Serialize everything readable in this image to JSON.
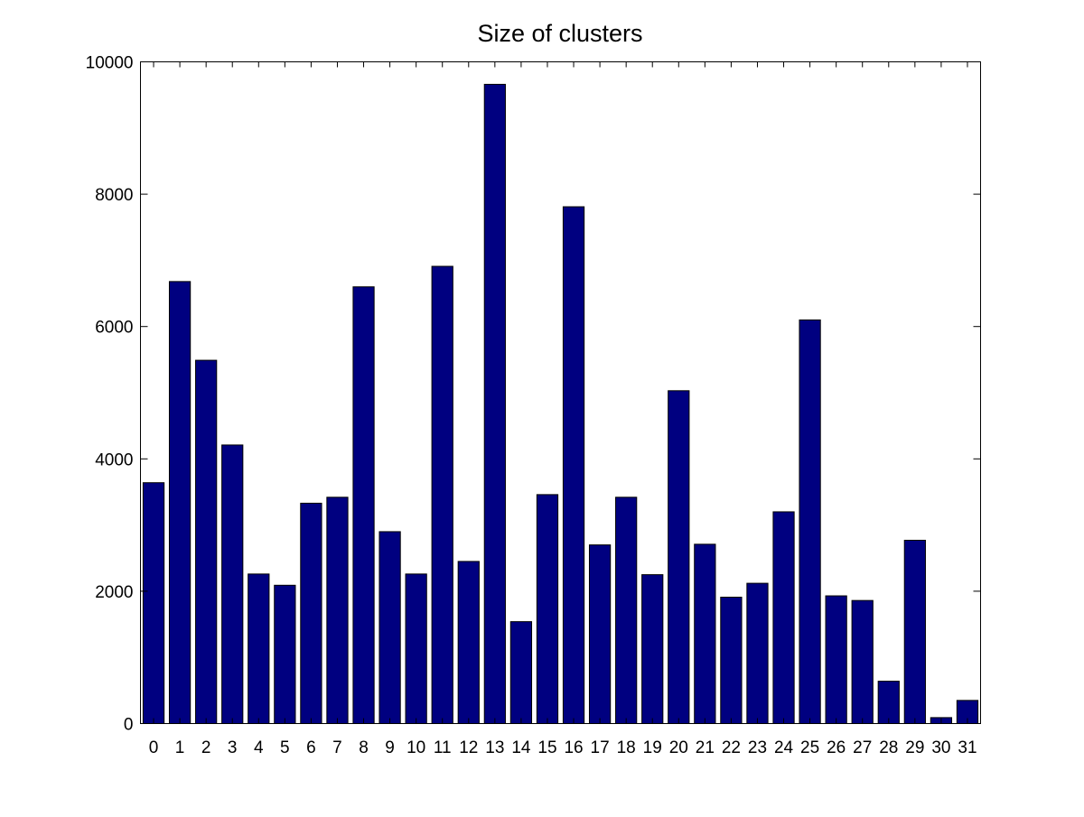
{
  "chart_data": {
    "type": "bar",
    "title": "Size of clusters",
    "xlabel": "",
    "ylabel": "",
    "categories": [
      "0",
      "1",
      "2",
      "3",
      "4",
      "5",
      "6",
      "7",
      "8",
      "9",
      "10",
      "11",
      "12",
      "13",
      "14",
      "15",
      "16",
      "17",
      "18",
      "19",
      "20",
      "21",
      "22",
      "23",
      "24",
      "25",
      "26",
      "27",
      "28",
      "29",
      "30",
      "31"
    ],
    "values": [
      3640,
      6680,
      5490,
      4210,
      2260,
      2090,
      3330,
      3420,
      6600,
      2900,
      2260,
      6910,
      2450,
      9660,
      1540,
      3460,
      7810,
      2700,
      3420,
      2250,
      5030,
      2710,
      1910,
      2120,
      3200,
      6100,
      1930,
      1860,
      640,
      2770,
      90,
      350
    ],
    "ylim": [
      0,
      10000
    ],
    "y_ticks": [
      "0",
      "2000",
      "4000",
      "6000",
      "8000",
      "10000"
    ],
    "bar_color": "#000080",
    "grid": false
  }
}
